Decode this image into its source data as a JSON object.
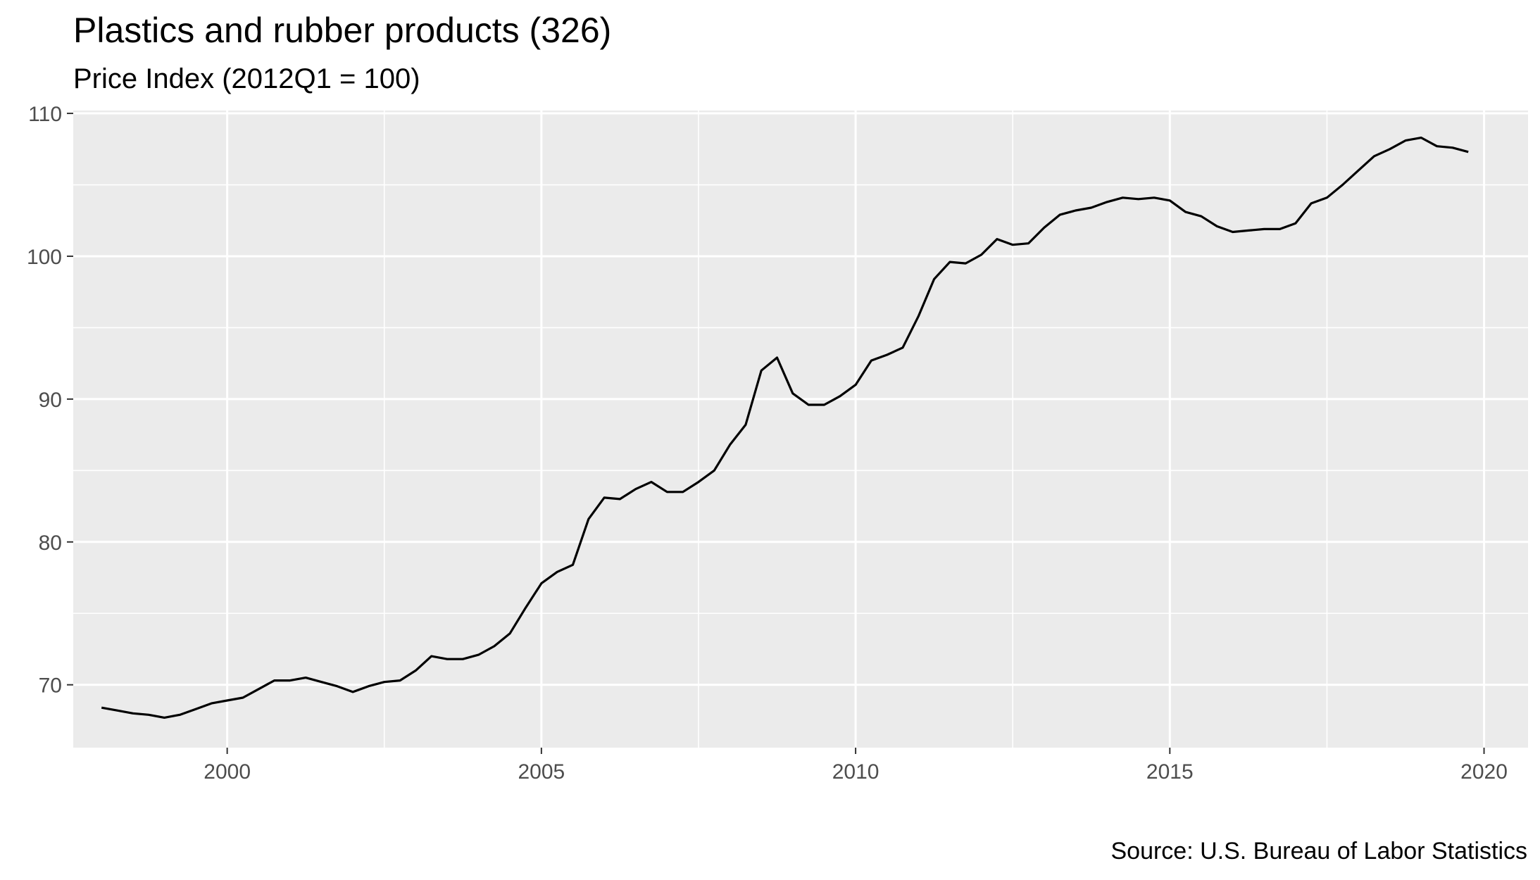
{
  "chart_data": {
    "type": "line",
    "title": "Plastics and rubber products (326)",
    "subtitle": "Price Index (2012Q1 = 100)",
    "caption": "Source: U.S. Bureau of Labor Statistics",
    "xlabel": "",
    "ylabel": "",
    "xlim": [
      1997.55,
      2020.7
    ],
    "ylim": [
      65.6,
      110.2
    ],
    "x_ticks": [
      2000,
      2005,
      2010,
      2015,
      2020
    ],
    "x_tick_labels": [
      "2000",
      "2005",
      "2010",
      "2015",
      "2020"
    ],
    "y_ticks": [
      70,
      80,
      90,
      100,
      110
    ],
    "y_tick_labels": [
      "70",
      "80",
      "90",
      "100",
      "110"
    ],
    "grid": true,
    "legend": "none",
    "colors": {
      "line": "#000000",
      "panel": "#ebebeb",
      "grid": "#ffffff",
      "tick_text": "#4d4d4d"
    },
    "series": [
      {
        "x": [
          1998.0,
          1998.25,
          1998.5,
          1998.75,
          1999.0,
          1999.25,
          1999.5,
          1999.75,
          2000.0,
          2000.25,
          2000.5,
          2000.75,
          2001.0,
          2001.25,
          2001.5,
          2001.75,
          2002.0,
          2002.25,
          2002.5,
          2002.75,
          2003.0,
          2003.25,
          2003.5,
          2003.75,
          2004.0,
          2004.25,
          2004.5,
          2004.75,
          2005.0,
          2005.25,
          2005.5,
          2005.75,
          2006.0,
          2006.25,
          2006.5,
          2006.75,
          2007.0,
          2007.25,
          2007.5,
          2007.75,
          2008.0,
          2008.25,
          2008.5,
          2008.75,
          2009.0,
          2009.25,
          2009.5,
          2009.75,
          2010.0,
          2010.25,
          2010.5,
          2010.75,
          2011.0,
          2011.25,
          2011.5,
          2011.75,
          2012.0,
          2012.25,
          2012.5,
          2012.75,
          2013.0,
          2013.25,
          2013.5,
          2013.75,
          2014.0,
          2014.25,
          2014.5,
          2014.75,
          2015.0,
          2015.25,
          2015.5,
          2015.75,
          2016.0,
          2016.25,
          2016.5,
          2016.75,
          2017.0,
          2017.25,
          2017.5,
          2017.75,
          2018.0,
          2018.25,
          2018.5,
          2018.75,
          2019.0,
          2019.25,
          2019.5,
          2019.75
        ],
        "values": [
          68.4,
          68.2,
          68.0,
          67.9,
          67.7,
          67.9,
          68.3,
          68.7,
          68.9,
          69.1,
          69.7,
          70.3,
          70.3,
          70.5,
          70.2,
          69.9,
          69.5,
          69.9,
          70.2,
          70.3,
          71.0,
          72.0,
          71.8,
          71.8,
          72.1,
          72.7,
          73.6,
          75.4,
          77.1,
          77.9,
          78.4,
          81.6,
          83.1,
          83.0,
          83.7,
          84.2,
          83.5,
          83.5,
          84.2,
          85.0,
          86.8,
          88.2,
          92.0,
          92.9,
          90.4,
          89.6,
          89.6,
          90.2,
          91.0,
          92.7,
          93.1,
          93.6,
          95.8,
          98.4,
          99.6,
          99.5,
          100.1,
          101.2,
          100.8,
          100.9,
          102.0,
          102.9,
          103.2,
          103.4,
          103.8,
          104.1,
          104.0,
          104.1,
          103.9,
          103.1,
          102.8,
          102.1,
          101.7,
          101.8,
          101.9,
          101.9,
          102.3,
          103.7,
          104.1,
          105.0,
          106.0,
          107.0,
          107.5,
          108.1,
          108.3,
          107.7,
          107.6,
          107.3
        ]
      }
    ]
  }
}
